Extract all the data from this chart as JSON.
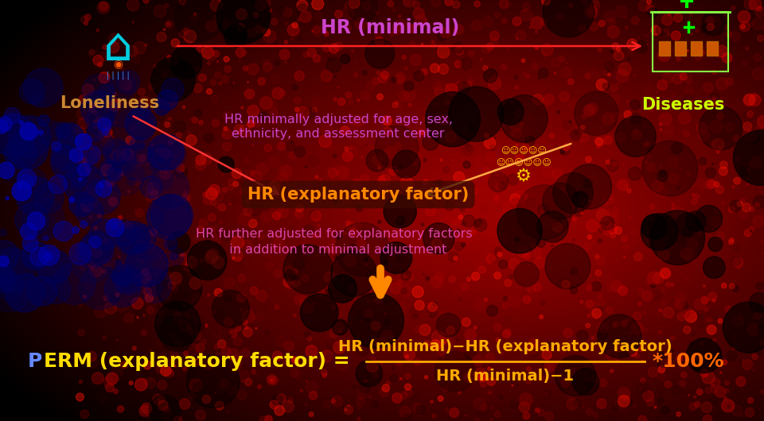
{
  "bg_color": "#050000",
  "title_hr_minimal": "HR (minimal)",
  "title_hr_minimal_color": "#cc44cc",
  "loneliness_label": "Loneliness",
  "loneliness_color": "#cc8833",
  "diseases_label": "Diseases",
  "diseases_color": "#ccff00",
  "minimal_adj_line1": "HR minimally adjusted for age, sex,",
  "minimal_adj_line2": "ethnicity, and assessment center",
  "minimal_adj_color": "#cc44cc",
  "hr_expl_label": "HR (explanatory factor)",
  "hr_expl_color": "#ff8800",
  "further_adj_line1": "HR further adjusted for explanatory factors",
  "further_adj_line2": "  in addition to minimal adjustment",
  "further_adj_color": "#dd44aa",
  "formula_perm_color": "#ffdd00",
  "formula_p_color": "#6688ff",
  "formula_numerator": "HR (minimal)−HR (explanatory factor)",
  "formula_denominator": "HR (minimal)−1",
  "formula_fraction_color": "#ffaa00",
  "formula_times": "*100%",
  "formula_times_color": "#ff6600",
  "arrow_horizontal_color": "#ff2222",
  "arrow_diagonal_left_color": "#ff3333",
  "arrow_diagonal_right_color": "#ffaa44",
  "arrow_down_color": "#ff8800",
  "figsize": [
    9.6,
    5.3
  ],
  "dpi": 100
}
